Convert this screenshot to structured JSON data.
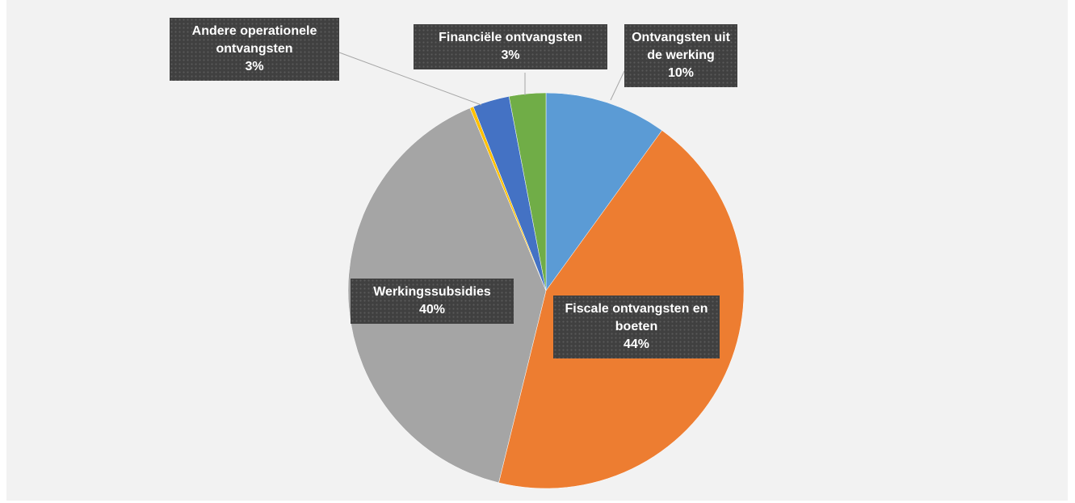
{
  "chart_data": {
    "type": "pie",
    "categories": [
      "Ontvangsten uit de werking",
      "Fiscale ontvangsten en boeten",
      "Werkingssubsidies",
      null,
      "Andere operationele ontvangsten",
      "Financiële ontvangsten"
    ],
    "values": [
      10,
      44,
      40,
      0.3,
      3,
      3
    ],
    "value_labels": [
      "10%",
      "44%",
      "40%",
      null,
      "3%",
      "3%"
    ],
    "colors": [
      "#5b9bd5",
      "#ed7d31",
      "#a5a5a5",
      "#ffc000",
      "#4472c4",
      "#70ad47"
    ]
  }
}
